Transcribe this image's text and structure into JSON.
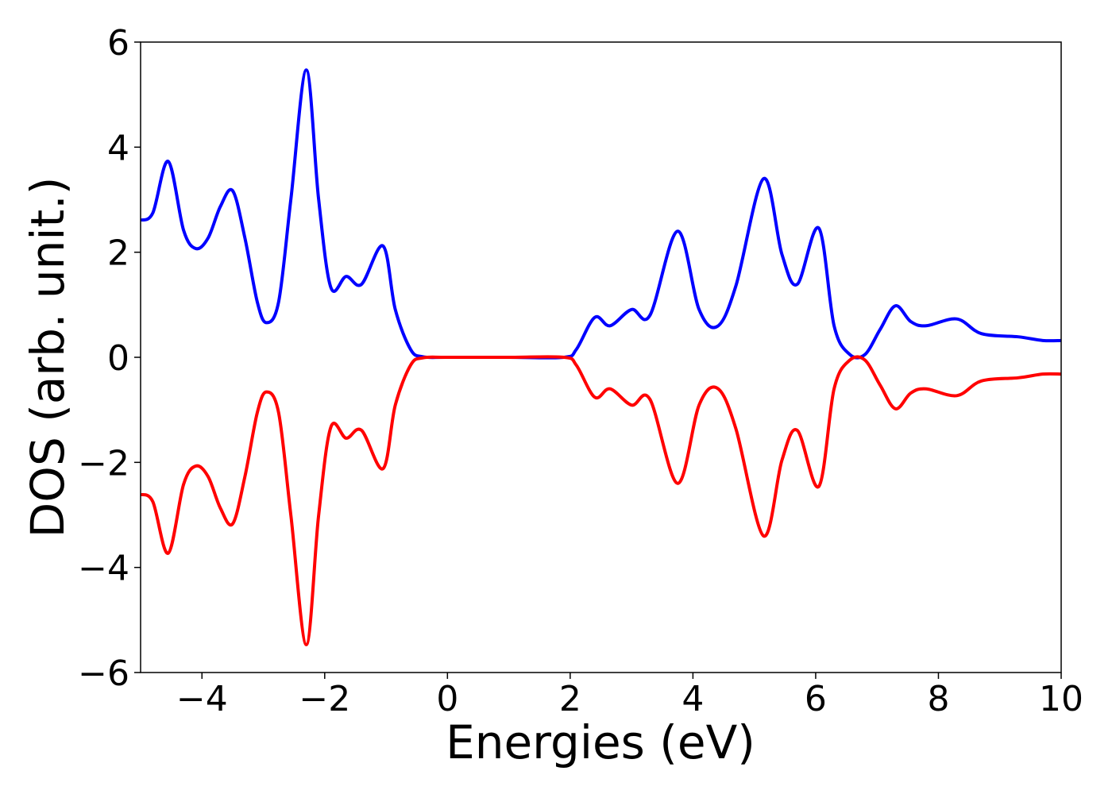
{
  "chart_data": {
    "type": "line",
    "xlabel": "Energies (eV)",
    "ylabel": "DOS (arb. unit.)",
    "x": [
      -5,
      -4.8,
      -4.55,
      -4.3,
      -4.1,
      -3.9,
      -3.7,
      -3.5,
      -3.3,
      -3.1,
      -2.95,
      -2.75,
      -2.55,
      -2.3,
      -2.1,
      -1.9,
      -1.65,
      -1.4,
      -1.05,
      -0.85,
      -0.6,
      -0.4,
      0,
      1,
      1.9,
      2.1,
      2.4,
      2.65,
      3.0,
      3.3,
      3.75,
      4.1,
      4.4,
      4.7,
      5.15,
      5.45,
      5.7,
      6.05,
      6.3,
      6.55,
      6.8,
      7.05,
      7.3,
      7.55,
      7.8,
      8.3,
      8.7,
      9.3,
      9.7,
      10
    ],
    "series": [
      {
        "color": "#0000ff",
        "values": [
          2.61,
          2.75,
          3.73,
          2.42,
          2.07,
          2.27,
          2.87,
          3.17,
          2.27,
          1.06,
          0.66,
          1.06,
          3.02,
          5.47,
          3.02,
          1.33,
          1.54,
          1.39,
          2.12,
          0.91,
          0.15,
          0.01,
          0,
          0,
          0,
          0.15,
          0.76,
          0.6,
          0.91,
          0.8,
          2.4,
          0.91,
          0.59,
          1.36,
          3.4,
          1.96,
          1.39,
          2.46,
          0.6,
          0.06,
          0.05,
          0.53,
          0.98,
          0.68,
          0.6,
          0.73,
          0.45,
          0.39,
          0.32,
          0.32
        ]
      },
      {
        "color": "#ff0000",
        "values": [
          -2.61,
          -2.75,
          -3.73,
          -2.42,
          -2.07,
          -2.27,
          -2.87,
          -3.17,
          -2.27,
          -1.06,
          -0.66,
          -1.06,
          -3.02,
          -5.47,
          -3.02,
          -1.33,
          -1.54,
          -1.39,
          -2.12,
          -0.91,
          -0.15,
          -0.01,
          0,
          0,
          0,
          -0.15,
          -0.76,
          -0.6,
          -0.91,
          -0.8,
          -2.4,
          -0.91,
          -0.59,
          -1.36,
          -3.4,
          -1.96,
          -1.39,
          -2.46,
          -0.6,
          -0.06,
          -0.05,
          -0.53,
          -0.98,
          -0.68,
          -0.6,
          -0.73,
          -0.45,
          -0.39,
          -0.32,
          -0.32
        ]
      }
    ],
    "xlim": [
      -5,
      10
    ],
    "xticks": [
      {
        "value": -4,
        "label": "−4"
      },
      {
        "value": -2,
        "label": "−2"
      },
      0,
      2,
      4,
      6,
      8,
      10
    ],
    "ylim": [
      -6,
      6
    ],
    "yticks": [
      {
        "value": -6,
        "label": "−6"
      },
      {
        "value": -4,
        "label": "−4"
      },
      {
        "value": -2,
        "label": "−2"
      },
      0,
      2,
      4,
      6
    ],
    "grid": false
  }
}
